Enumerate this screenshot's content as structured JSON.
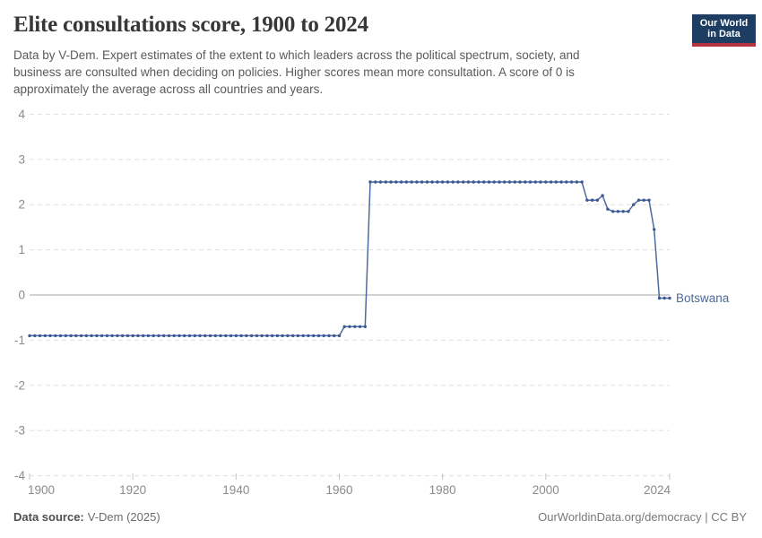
{
  "header": {
    "title": "Elite consultations score, 1900 to 2024",
    "subtitle_lines": [
      "Data by V-Dem. Expert estimates of the extent to which leaders across the political spectrum, society, and",
      "business are consulted when deciding on policies. Higher scores mean more consultation. A score of 0 is",
      "approximately the average across all countries and years."
    ],
    "logo": {
      "line1": "Our World",
      "line2": "in Data",
      "bg_color": "#1d3d63",
      "stripe_color": "#b3333f"
    }
  },
  "footer": {
    "source_label": "Data source:",
    "source_value": "V-Dem (2025)",
    "credit": "OurWorldinData.org/democracy | CC BY"
  },
  "chart_data": {
    "type": "line",
    "title": "Elite consultations score, 1900 to 2024",
    "entity_label": "Botswana",
    "line_color": "#4c6a9c",
    "dot_color": "#3b5795",
    "grid": true,
    "gridline_color": "#e0e0e0",
    "zero_line_color": "#a3a3a3",
    "axis_label_color": "#8b8b8b",
    "x": {
      "label": "",
      "min": 1900,
      "max": 2024,
      "ticks": [
        1900,
        1920,
        1940,
        1960,
        1980,
        2000,
        2024
      ]
    },
    "y": {
      "label": "",
      "min": -4,
      "max": 4,
      "ticks": [
        4,
        3,
        2,
        1,
        0,
        -1,
        -2,
        -3,
        -4
      ]
    },
    "series": [
      {
        "name": "Botswana",
        "segments": [
          {
            "from": 1900,
            "to": 1960,
            "value": -0.9
          },
          {
            "from": 1961,
            "to": 1965,
            "value": -0.7
          },
          {
            "from": 1966,
            "to": 2007,
            "value": 2.5
          },
          {
            "from": 2008,
            "to": 2010,
            "value": 2.1
          },
          {
            "from": 2011,
            "to": 2011,
            "value": 2.2
          },
          {
            "from": 2012,
            "to": 2012,
            "value": 1.9
          },
          {
            "from": 2013,
            "to": 2016,
            "value": 1.85
          },
          {
            "from": 2017,
            "to": 2017,
            "value": 2.0
          },
          {
            "from": 2018,
            "to": 2020,
            "value": 2.1
          },
          {
            "from": 2021,
            "to": 2021,
            "value": 1.45
          },
          {
            "from": 2022,
            "to": 2024,
            "value": -0.07
          }
        ]
      }
    ]
  }
}
